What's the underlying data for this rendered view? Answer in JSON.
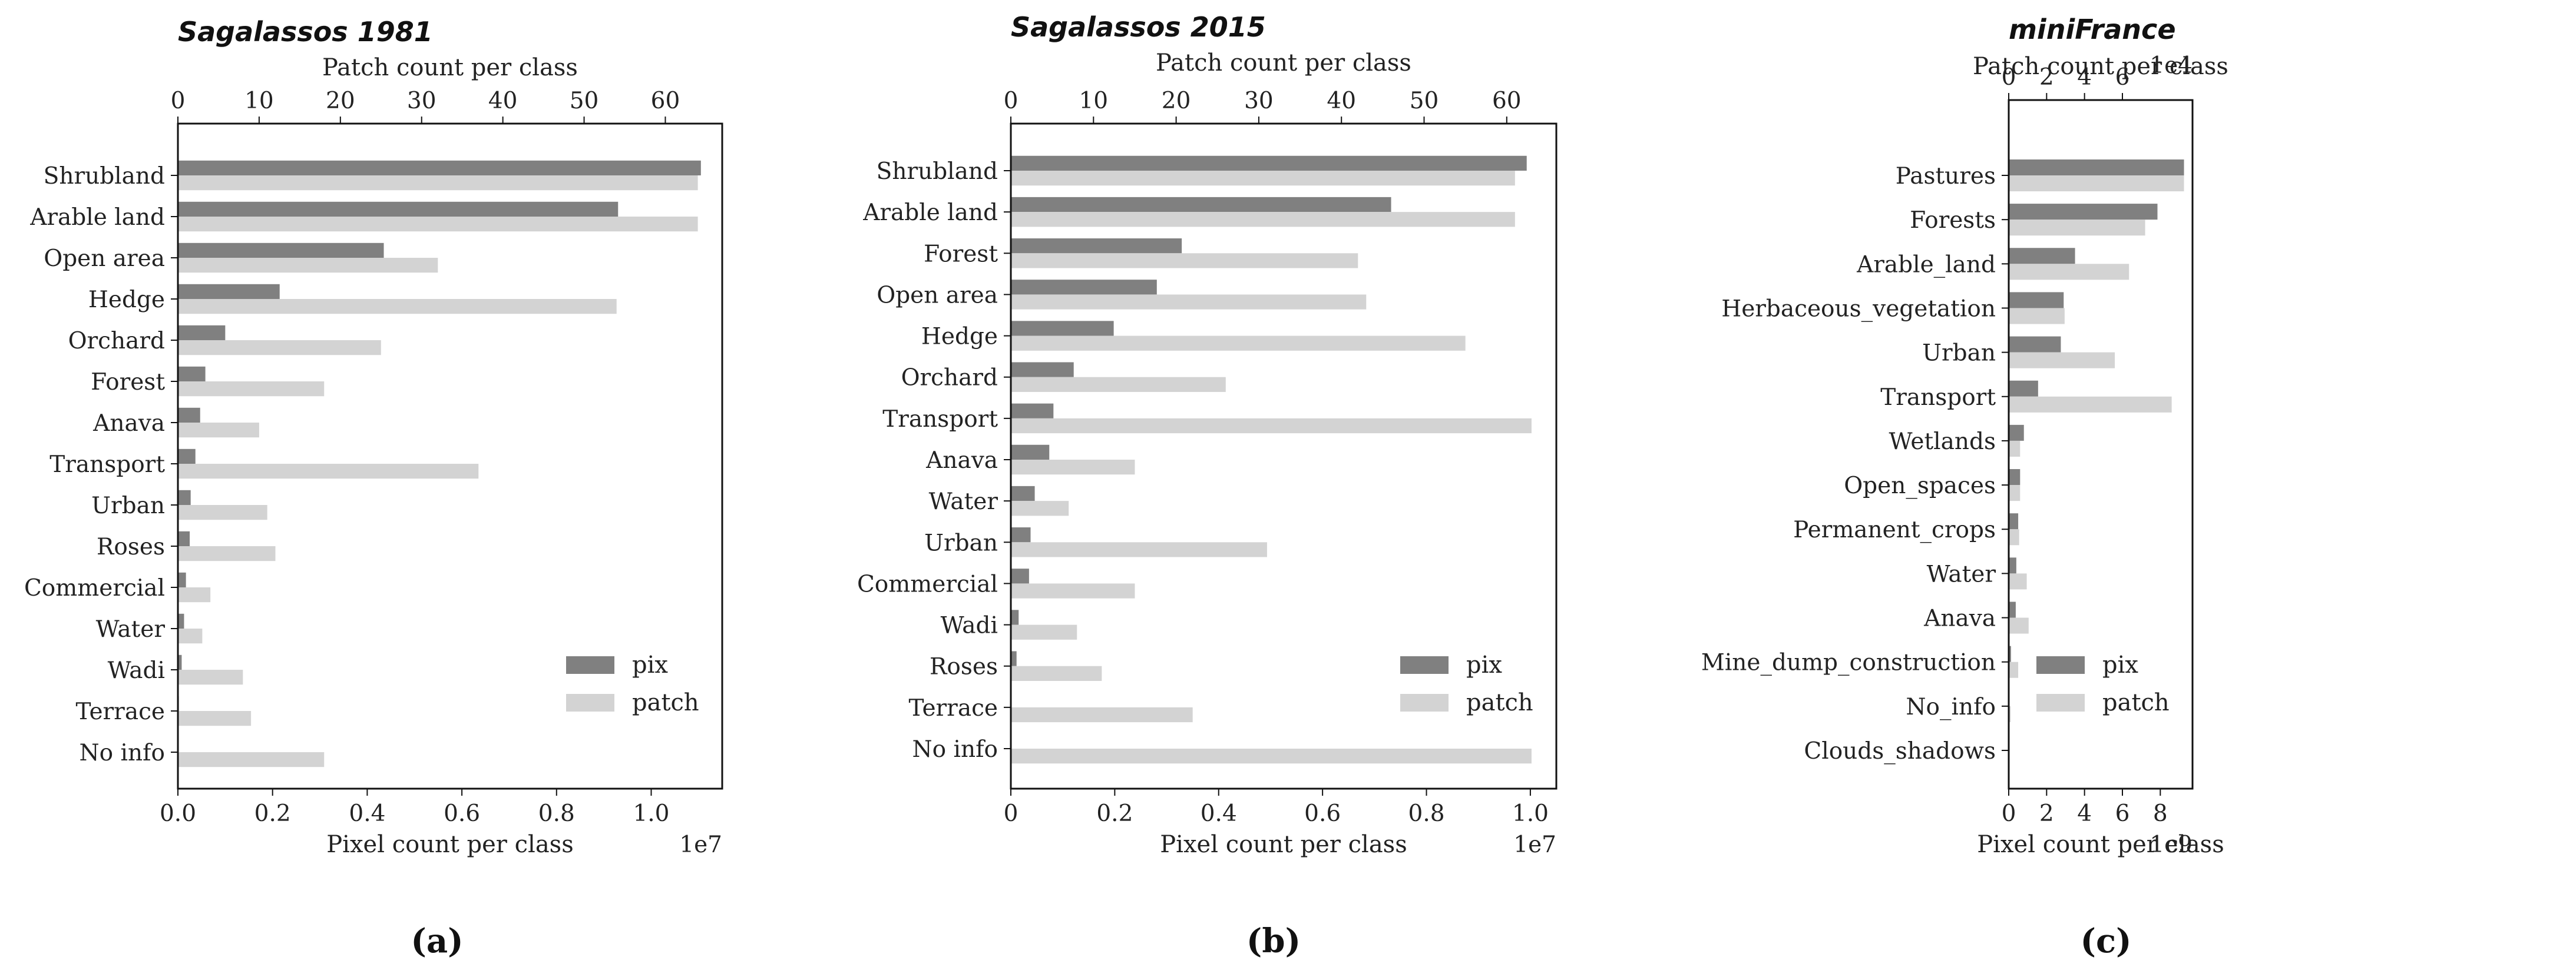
{
  "colors": {
    "pix": "#808080",
    "patch": "#d3d3d3",
    "axis": "#111111"
  },
  "chart_data": [
    {
      "type": "bar",
      "orientation": "horizontal",
      "title": "Sagalassos 1981",
      "caption": "(a)",
      "categories": [
        "Shrubland",
        "Arable land",
        "Open area",
        "Hedge",
        "Orchard",
        "Forest",
        "Anava",
        "Transport",
        "Urban",
        "Roses",
        "Commercial",
        "Water",
        "Wadi",
        "Terrace",
        "No info"
      ],
      "series": [
        {
          "name": "pix",
          "axis": "bottom",
          "values": [
            11.05,
            9.3,
            4.35,
            2.15,
            1.0,
            0.58,
            0.47,
            0.37,
            0.27,
            0.25,
            0.17,
            0.13,
            0.08,
            0.02,
            0.0
          ]
        },
        {
          "name": "patch",
          "axis": "top",
          "values": [
            64,
            64,
            32,
            54,
            25,
            18,
            10,
            37,
            11,
            12,
            4,
            3,
            8,
            9,
            18
          ]
        }
      ],
      "xlabel_bottom": "Pixel count per class",
      "xlabel_top": "Patch count per class",
      "xlim_bottom": [
        0,
        11.5
      ],
      "xlim_top": [
        0,
        67
      ],
      "ticks_bottom": [
        0,
        2,
        4,
        6,
        8,
        10
      ],
      "tick_labels_bottom": [
        "0.0",
        "0.2",
        "0.4",
        "0.6",
        "0.8",
        "1.0"
      ],
      "ticks_top": [
        0,
        10,
        20,
        30,
        40,
        50,
        60
      ],
      "tick_labels_top": [
        "0",
        "10",
        "20",
        "30",
        "40",
        "50",
        "60"
      ],
      "offset_bottom": "1e7",
      "offset_top": "",
      "legend": [
        "pix",
        "patch"
      ],
      "legend_loc": "lower-right"
    },
    {
      "type": "bar",
      "orientation": "horizontal",
      "title": "Sagalassos 2015",
      "caption": "(b)",
      "categories": [
        "Shrubland",
        "Arable land",
        "Forest",
        "Open area",
        "Hedge",
        "Orchard",
        "Transport",
        "Anava",
        "Water",
        "Urban",
        "Commercial",
        "Wadi",
        "Roses",
        "Terrace",
        "No info"
      ],
      "series": [
        {
          "name": "pix",
          "axis": "bottom",
          "values": [
            9.93,
            7.32,
            3.29,
            2.81,
            1.98,
            1.21,
            0.82,
            0.74,
            0.46,
            0.38,
            0.35,
            0.15,
            0.11,
            0.01,
            0.0
          ]
        },
        {
          "name": "patch",
          "axis": "top",
          "values": [
            61,
            61,
            42,
            43,
            55,
            26,
            63,
            15,
            7,
            31,
            15,
            8,
            11,
            22,
            63
          ]
        }
      ],
      "xlabel_bottom": "Pixel count per class",
      "xlabel_top": "Patch count per class",
      "xlim_bottom": [
        0,
        10.5
      ],
      "xlim_top": [
        0,
        66
      ],
      "ticks_bottom": [
        0,
        2,
        4,
        6,
        8,
        10
      ],
      "tick_labels_bottom": [
        "0",
        "0.2",
        "0.4",
        "0.6",
        "0.8",
        "1.0"
      ],
      "ticks_top": [
        0,
        10,
        20,
        30,
        40,
        50,
        60
      ],
      "tick_labels_top": [
        "0",
        "10",
        "20",
        "30",
        "40",
        "50",
        "60"
      ],
      "offset_bottom": "1e7",
      "offset_top": "",
      "legend": [
        "pix",
        "patch"
      ],
      "legend_loc": "lower-right"
    },
    {
      "type": "bar",
      "orientation": "horizontal",
      "title": "miniFrance",
      "caption": "(c)",
      "categories": [
        "Pastures",
        "Forests",
        "Arable_land",
        "Herbaceous_vegetation",
        "Urban",
        "Transport",
        "Wetlands",
        "Open_spaces",
        "Permanent_crops",
        "Water",
        "Anava",
        "Mine_dump_construction",
        "No_info",
        "Clouds_shadows"
      ],
      "series": [
        {
          "name": "pix",
          "axis": "bottom",
          "values": [
            9.25,
            7.85,
            3.5,
            2.9,
            2.75,
            1.55,
            0.8,
            0.6,
            0.5,
            0.4,
            0.37,
            0.12,
            0.02,
            0.0
          ]
        },
        {
          "name": "patch",
          "axis": "top",
          "values": [
            9.25,
            7.2,
            6.35,
            2.95,
            5.6,
            8.6,
            0.6,
            0.6,
            0.55,
            0.95,
            1.05,
            0.5,
            0.1,
            0.0
          ]
        }
      ],
      "xlabel_bottom": "Pixel count per class",
      "xlabel_top": "Patch count per class",
      "xlim_bottom": [
        0,
        9.7
      ],
      "xlim_top": [
        0,
        9.7
      ],
      "ticks_bottom": [
        0,
        2,
        4,
        6,
        8
      ],
      "tick_labels_bottom": [
        "0",
        "2",
        "4",
        "6",
        "8"
      ],
      "ticks_top": [
        0,
        2,
        4,
        6
      ],
      "tick_labels_top": [
        "0",
        "2",
        "4",
        "6"
      ],
      "offset_bottom": "1e9",
      "offset_top": "1e4",
      "legend": [
        "pix",
        "patch"
      ],
      "legend_loc": "lower-right"
    }
  ]
}
